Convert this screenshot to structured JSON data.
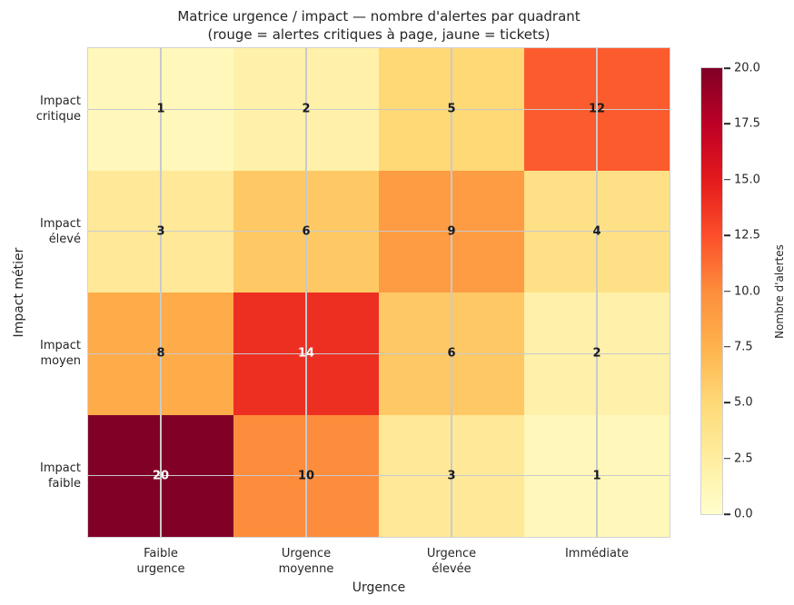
{
  "chart_data": {
    "type": "heatmap",
    "title": "Matrice urgence / impact — nombre d'alertes par quadrant",
    "subtitle": "(rouge = alertes critiques à page, jaune = tickets)",
    "xlabel": "Urgence",
    "ylabel": "Impact métier",
    "x_categories": [
      "Faible\nurgence",
      "Urgence\nmoyenne",
      "Urgence\nélevée",
      "Immédiate"
    ],
    "y_categories": [
      "Impact\ncritique",
      "Impact\nélevé",
      "Impact\nmoyen",
      "Impact\nfaible"
    ],
    "values": [
      [
        1,
        2,
        5,
        12
      ],
      [
        3,
        6,
        9,
        4
      ],
      [
        8,
        14,
        6,
        2
      ],
      [
        20,
        10,
        3,
        1
      ]
    ],
    "cell_colors": [
      [
        "#fff8ba",
        "#fff1a9",
        "#fed976",
        "#fc5b2e"
      ],
      [
        "#ffe998",
        "#fec965",
        "#fd9c42",
        "#fee187"
      ],
      [
        "#feab49",
        "#ed2f22",
        "#fec965",
        "#fff1a9"
      ],
      [
        "#800026",
        "#fd8d3c",
        "#ffe998",
        "#fff8ba"
      ]
    ],
    "annotation_colors": [
      [
        "#1a1a1a",
        "#1a1a1a",
        "#1a1a1a",
        "#1a1a1a"
      ],
      [
        "#1a1a1a",
        "#1a1a1a",
        "#1a1a1a",
        "#1a1a1a"
      ],
      [
        "#1a1a1a",
        "#ffffff",
        "#1a1a1a",
        "#1a1a1a"
      ],
      [
        "#ffffff",
        "#1a1a1a",
        "#1a1a1a",
        "#1a1a1a"
      ]
    ],
    "grid": true,
    "gridline_color": "#c9c9cd",
    "colorbar": {
      "label": "Nombre d'alertes",
      "vmin": 0,
      "vmax": 20,
      "tick_labels": [
        "20.0",
        "17.5",
        "15.0",
        "12.5",
        "10.0",
        "7.5",
        "5.0",
        "2.5",
        "0.0"
      ],
      "tick_values": [
        20,
        17.5,
        15,
        12.5,
        10,
        7.5,
        5,
        2.5,
        0
      ],
      "gradient_stops_bottom_to_top": [
        "#ffffcc",
        "#ffeda0",
        "#fed976",
        "#feb24c",
        "#fd8d3c",
        "#fc4e2a",
        "#e31a1c",
        "#bd0026",
        "#800026"
      ]
    }
  }
}
